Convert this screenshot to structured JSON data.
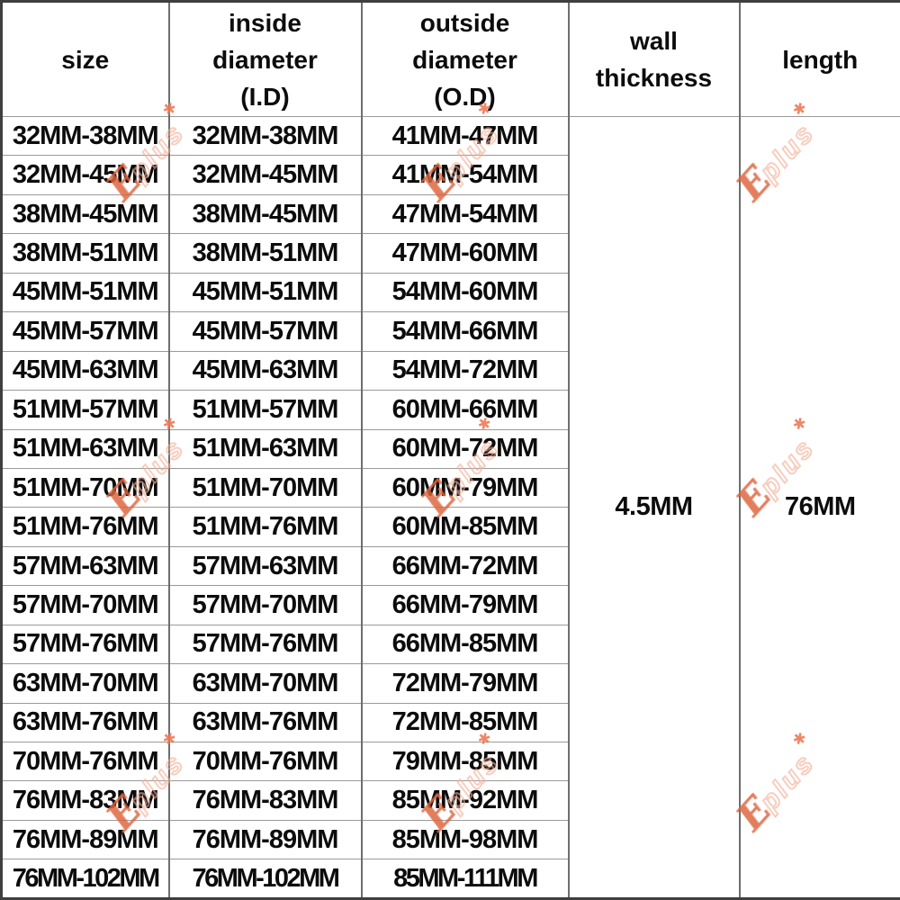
{
  "watermark": {
    "brand_initial": "E",
    "brand_rest": "plus",
    "star": "✱",
    "color_light": "#f2ae94",
    "color_accent": "#e26942"
  },
  "table": {
    "headers": [
      {
        "id": "size",
        "lines": [
          "size"
        ]
      },
      {
        "id": "inside-diameter",
        "lines": [
          "inside",
          "diameter",
          "(I.D)"
        ]
      },
      {
        "id": "outside-diameter",
        "lines": [
          "outside",
          "diameter",
          "(O.D)"
        ]
      },
      {
        "id": "wall-thickness",
        "lines": [
          "wall",
          "thickness"
        ]
      },
      {
        "id": "length",
        "lines": [
          "length"
        ]
      }
    ],
    "wall_thickness": "4.5MM",
    "length": "76MM",
    "rows": [
      {
        "size": "32MM-38MM",
        "inside_diameter": "32MM-38MM",
        "outside_diameter": "41MM-47MM"
      },
      {
        "size": "32MM-45MM",
        "inside_diameter": "32MM-45MM",
        "outside_diameter": "41MM-54MM"
      },
      {
        "size": "38MM-45MM",
        "inside_diameter": "38MM-45MM",
        "outside_diameter": "47MM-54MM"
      },
      {
        "size": "38MM-51MM",
        "inside_diameter": "38MM-51MM",
        "outside_diameter": "47MM-60MM"
      },
      {
        "size": "45MM-51MM",
        "inside_diameter": "45MM-51MM",
        "outside_diameter": "54MM-60MM"
      },
      {
        "size": "45MM-57MM",
        "inside_diameter": "45MM-57MM",
        "outside_diameter": "54MM-66MM"
      },
      {
        "size": "45MM-63MM",
        "inside_diameter": "45MM-63MM",
        "outside_diameter": "54MM-72MM"
      },
      {
        "size": "51MM-57MM",
        "inside_diameter": "51MM-57MM",
        "outside_diameter": "60MM-66MM"
      },
      {
        "size": "51MM-63MM",
        "inside_diameter": "51MM-63MM",
        "outside_diameter": "60MM-72MM"
      },
      {
        "size": "51MM-70MM",
        "inside_diameter": "51MM-70MM",
        "outside_diameter": "60MM-79MM"
      },
      {
        "size": "51MM-76MM",
        "inside_diameter": "51MM-76MM",
        "outside_diameter": "60MM-85MM"
      },
      {
        "size": "57MM-63MM",
        "inside_diameter": "57MM-63MM",
        "outside_diameter": "66MM-72MM"
      },
      {
        "size": "57MM-70MM",
        "inside_diameter": "57MM-70MM",
        "outside_diameter": "66MM-79MM"
      },
      {
        "size": "57MM-76MM",
        "inside_diameter": "57MM-76MM",
        "outside_diameter": "66MM-85MM"
      },
      {
        "size": "63MM-70MM",
        "inside_diameter": "63MM-70MM",
        "outside_diameter": "72MM-79MM"
      },
      {
        "size": "63MM-76MM",
        "inside_diameter": "63MM-76MM",
        "outside_diameter": "72MM-85MM"
      },
      {
        "size": "70MM-76MM",
        "inside_diameter": "70MM-76MM",
        "outside_diameter": "79MM-85MM"
      },
      {
        "size": "76MM-83MM",
        "inside_diameter": "76MM-83MM",
        "outside_diameter": "85MM-92MM"
      },
      {
        "size": "76MM-89MM",
        "inside_diameter": "76MM-89MM",
        "outside_diameter": "85MM-98MM"
      },
      {
        "size": "76MM-102MM",
        "inside_diameter": "76MM-102MM",
        "outside_diameter": "85MM-111MM"
      }
    ]
  }
}
